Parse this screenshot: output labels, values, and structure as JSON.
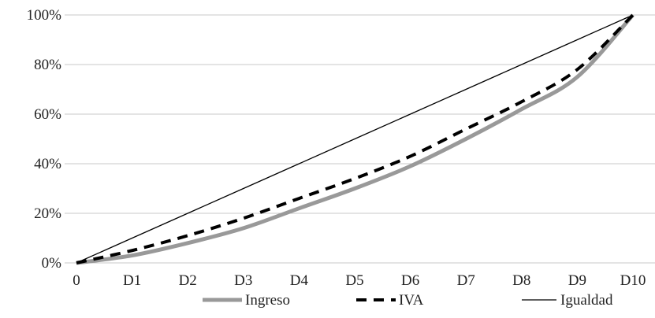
{
  "chart_data": {
    "type": "line",
    "categories": [
      "0",
      "D1",
      "D2",
      "D3",
      "D4",
      "D5",
      "D6",
      "D7",
      "D8",
      "D9",
      "D10"
    ],
    "ylim": [
      0,
      100
    ],
    "y_ticks": [
      0,
      20,
      40,
      60,
      80,
      100
    ],
    "y_tick_labels": [
      "0%",
      "20%",
      "40%",
      "60%",
      "80%",
      "100%"
    ],
    "grid": true,
    "legend_position": "bottom",
    "series": [
      {
        "name": "Ingreso",
        "values": [
          0,
          3,
          8,
          14,
          22,
          30,
          39,
          50,
          62,
          75,
          100
        ],
        "color": "#999999",
        "style": "solid-thick"
      },
      {
        "name": "IVA",
        "values": [
          0,
          5,
          11,
          18,
          26,
          34,
          43,
          54,
          65,
          78,
          100
        ],
        "color": "#000000",
        "style": "dashed"
      },
      {
        "name": "Igualdad",
        "values": [
          0,
          10,
          20,
          30,
          40,
          50,
          60,
          70,
          80,
          90,
          100
        ],
        "color": "#000000",
        "style": "solid-thin"
      }
    ]
  }
}
